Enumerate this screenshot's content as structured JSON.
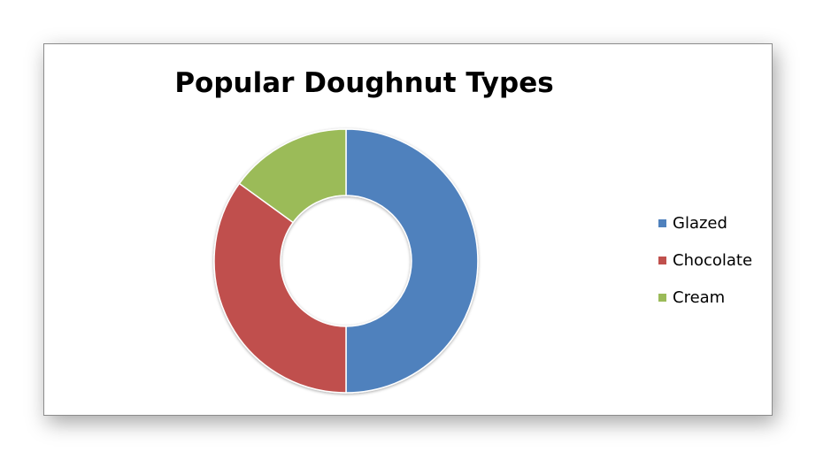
{
  "chart_data": {
    "type": "doughnut",
    "title": "Popular Doughnut Types",
    "categories": [
      "Glazed",
      "Chocolate",
      "Cream"
    ],
    "values": [
      50,
      35,
      15
    ],
    "colors": [
      "#4f81bd",
      "#c0504d",
      "#9bbb59"
    ],
    "legend_position": "right"
  }
}
